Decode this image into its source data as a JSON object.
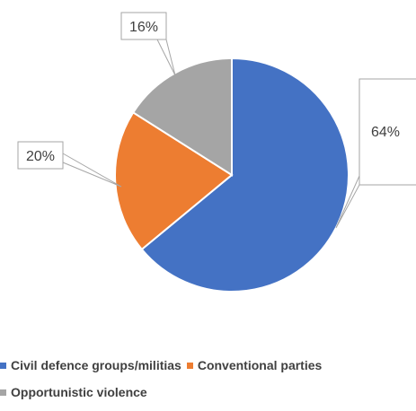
{
  "chart_data": {
    "type": "pie",
    "title": "",
    "categories": [
      "Civil defence groups/militias",
      "Conventional parties",
      "Opportunistic violence"
    ],
    "values": [
      64,
      20,
      16
    ],
    "data_labels": [
      "64%",
      "20%",
      "16%"
    ],
    "colors": [
      "#4472C4",
      "#ED7D31",
      "#A5A5A5"
    ],
    "legend_position": "bottom",
    "start_angle_deg": 0,
    "direction": "clockwise"
  },
  "legend": {
    "items": [
      {
        "label": "Civil defence groups/militias",
        "color": "#4472C4"
      },
      {
        "label": "Conventional parties",
        "color": "#ED7D31"
      },
      {
        "label": "Opportunistic violence",
        "color": "#A5A5A5"
      }
    ]
  }
}
